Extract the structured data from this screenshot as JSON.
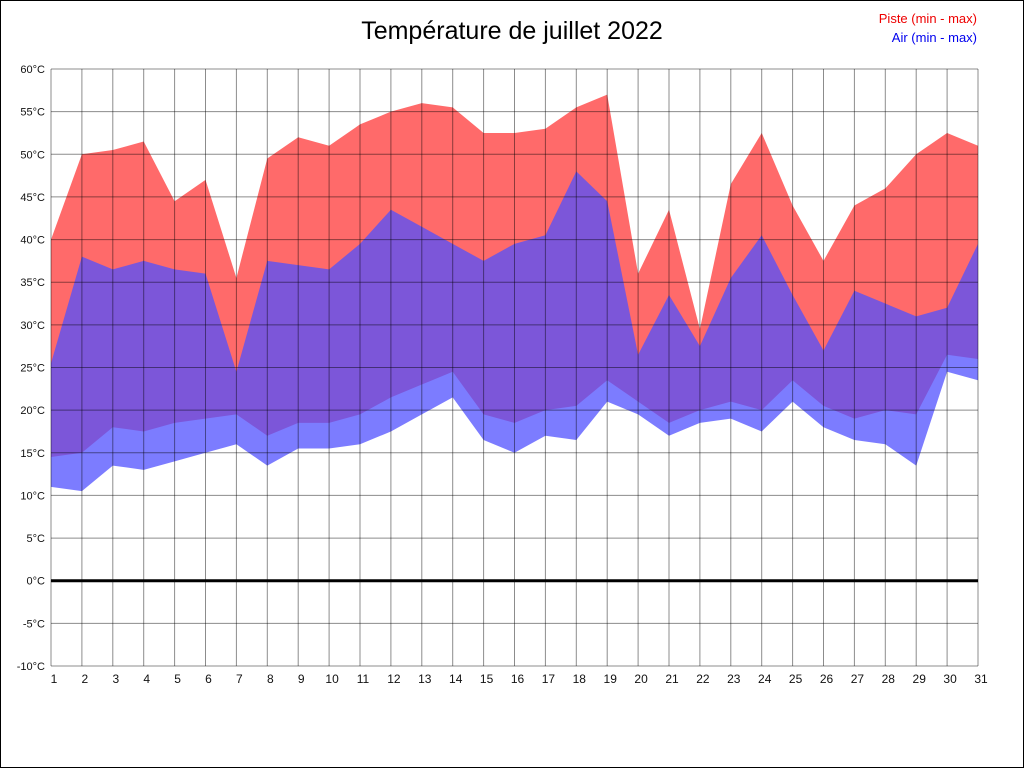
{
  "chart_data": {
    "type": "area",
    "title": "Température de juillet 2022",
    "xlabel": "",
    "ylabel": "",
    "ylim": [
      -10,
      60
    ],
    "grid": true,
    "legend_position": "top-right",
    "zero_line": true,
    "x": [
      1,
      2,
      3,
      4,
      5,
      6,
      7,
      8,
      9,
      10,
      11,
      12,
      13,
      14,
      15,
      16,
      17,
      18,
      19,
      20,
      21,
      22,
      23,
      24,
      25,
      26,
      27,
      28,
      29,
      30,
      31
    ],
    "x_tick_labels": [
      "1",
      "2",
      "3",
      "4",
      "5",
      "6",
      "7",
      "8",
      "9",
      "10",
      "11",
      "12",
      "13",
      "14",
      "15",
      "16",
      "17",
      "18",
      "19",
      "20",
      "21",
      "22",
      "23",
      "24",
      "25",
      "26",
      "27",
      "28",
      "29",
      "30",
      "31"
    ],
    "y_tick_values": [
      60,
      55,
      50,
      45,
      40,
      35,
      30,
      25,
      20,
      15,
      10,
      5,
      0,
      -5,
      -10
    ],
    "y_tick_labels": [
      "60°C",
      "55°C",
      "50°C",
      "45°C",
      "40°C",
      "35°C",
      "30°C",
      "25°C",
      "20°C",
      "15°C",
      "10°C",
      "5°C",
      "0°C",
      "-5°C",
      "-10°C"
    ],
    "series": [
      {
        "name": "Piste (min - max)",
        "legend_color": "#ee0000",
        "fill_color": "#ff6a6a",
        "fill_opacity": 1,
        "min": [
          14.5,
          15,
          18,
          17.5,
          18.5,
          19,
          19.5,
          17,
          18.5,
          18.5,
          19.5,
          21.5,
          23,
          24.5,
          19.5,
          18.5,
          20,
          20.5,
          23.5,
          21,
          18.5,
          20,
          21,
          20,
          23.5,
          20.5,
          19,
          20,
          19.5,
          26.5,
          26
        ],
        "max": [
          40,
          50,
          50.5,
          51.5,
          44.5,
          47,
          35.5,
          49.5,
          52,
          51,
          53.5,
          55,
          56,
          55.5,
          52.5,
          52.5,
          53,
          55.5,
          57,
          36,
          43.5,
          29.5,
          46.5,
          52.5,
          44,
          37.5,
          44,
          46,
          50,
          52.5,
          51
        ]
      },
      {
        "name": "Air (min - max)",
        "legend_color": "#0000ee",
        "fill_color": "#5050ff",
        "fill_opacity": 0.75,
        "min": [
          11,
          10.5,
          13.5,
          13,
          14,
          15,
          16,
          13.5,
          15.5,
          15.5,
          16,
          17.5,
          19.5,
          21.5,
          16.5,
          15,
          17,
          16.5,
          21,
          19.5,
          17,
          18.5,
          19,
          17.5,
          21,
          18,
          16.5,
          16,
          13.5,
          24.5,
          23.5
        ],
        "max": [
          25.5,
          38,
          36.5,
          37.5,
          36.5,
          36,
          24.5,
          37.5,
          37,
          36.5,
          39.5,
          43.5,
          41.5,
          39.5,
          37.5,
          39.5,
          40.5,
          48,
          44.5,
          26.5,
          33.5,
          27.5,
          35.5,
          40.5,
          33.5,
          27,
          34,
          32.5,
          31,
          32,
          39.5
        ]
      }
    ]
  }
}
